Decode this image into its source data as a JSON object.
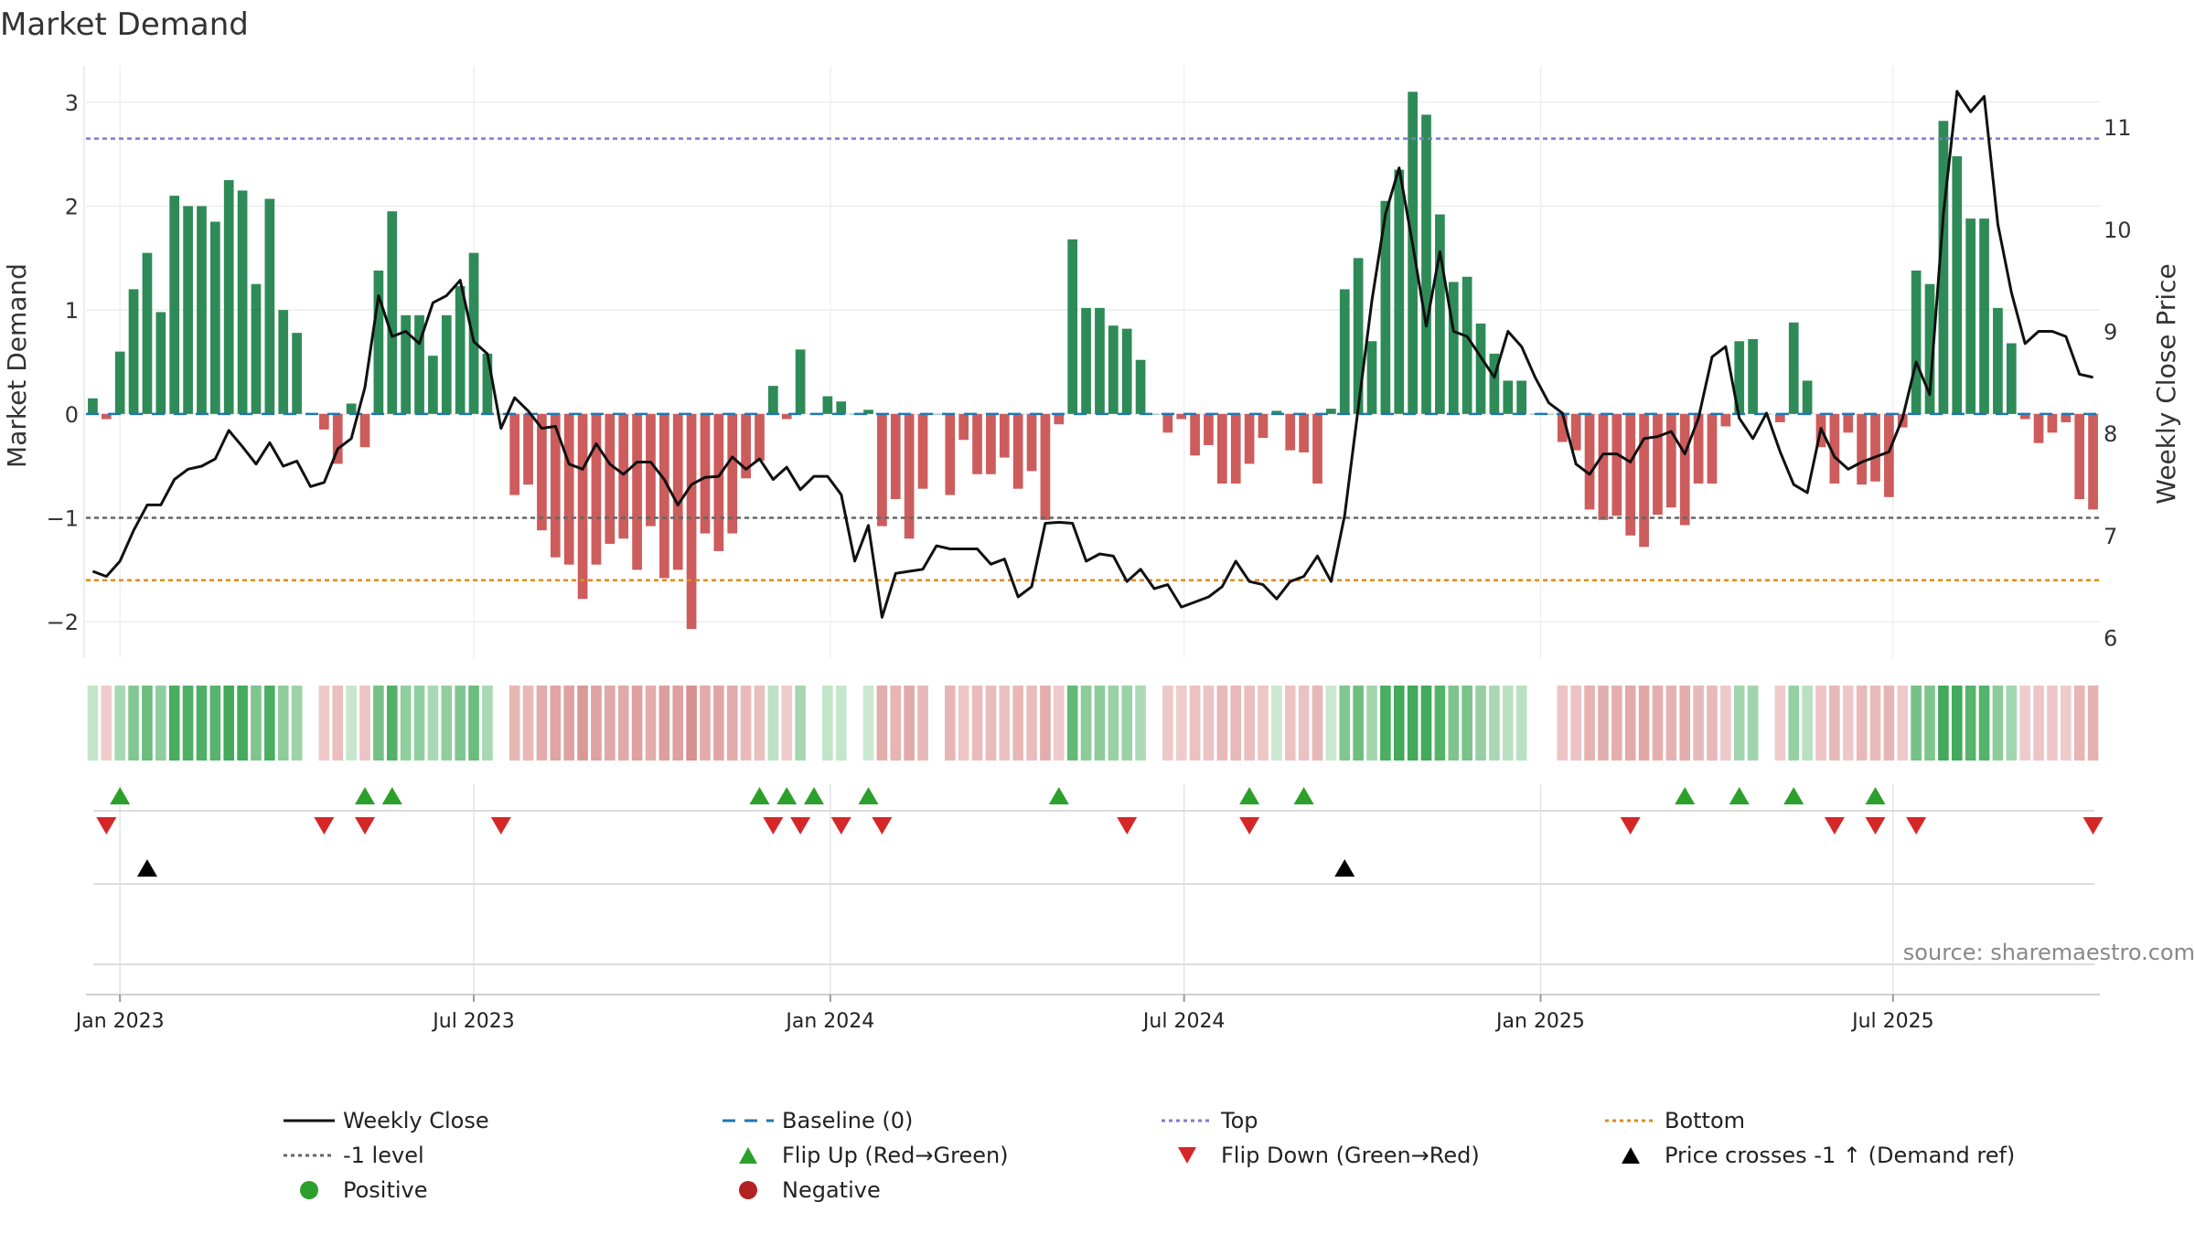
{
  "chart_data": {
    "type": "bar",
    "title": "Market Demand",
    "ylabel": "Market Demand",
    "y2label": "Weekly Close Price",
    "ylim": [
      -2.35,
      3.35
    ],
    "y2lim": [
      5.8,
      11.6
    ],
    "yticks": [
      3,
      2,
      1,
      0,
      -1,
      -2
    ],
    "ytick_labels": [
      "3",
      "2",
      "1",
      "0",
      "−1",
      "−2"
    ],
    "y2ticks": [
      11,
      10,
      9,
      8,
      7,
      6
    ],
    "y2tick_labels": [
      "11",
      "10",
      "9",
      "8",
      "7",
      "6"
    ],
    "xticks": [
      {
        "week": 2,
        "label": "Jan 2023"
      },
      {
        "week": 28,
        "label": "Jul 2023"
      },
      {
        "week": 54.2,
        "label": "Jan 2024"
      },
      {
        "week": 80.2,
        "label": "Jul 2024"
      },
      {
        "week": 106.4,
        "label": "Jan 2025"
      },
      {
        "week": 132.3,
        "label": "Jul 2025"
      }
    ],
    "levels": {
      "baseline": 0,
      "top": 2.65,
      "minus_one": -1,
      "bottom": -1.6
    },
    "demand": [
      0.15,
      -0.05,
      0.6,
      1.2,
      1.55,
      0.98,
      2.1,
      2.0,
      2.0,
      1.85,
      2.25,
      2.15,
      1.25,
      2.07,
      1.0,
      0.78,
      0.0,
      -0.15,
      -0.48,
      0.1,
      -0.32,
      1.38,
      1.95,
      0.95,
      0.95,
      0.56,
      0.95,
      1.23,
      1.55,
      0.58,
      0.0,
      -0.78,
      -0.68,
      -1.12,
      -1.38,
      -1.45,
      -1.78,
      -1.45,
      -1.25,
      -1.2,
      -1.5,
      -1.08,
      -1.58,
      -1.5,
      -2.07,
      -1.15,
      -1.32,
      -1.15,
      -0.62,
      -0.45,
      0.27,
      -0.05,
      0.62,
      0.0,
      0.17,
      0.12,
      0.0,
      0.04,
      -1.08,
      -0.82,
      -1.2,
      -0.72,
      0.0,
      -0.78,
      -0.25,
      -0.58,
      -0.58,
      -0.42,
      -0.72,
      -0.55,
      -1.02,
      -0.1,
      1.68,
      1.02,
      1.02,
      0.85,
      0.82,
      0.52,
      0.0,
      -0.18,
      -0.05,
      -0.4,
      -0.3,
      -0.67,
      -0.67,
      -0.48,
      -0.23,
      0.03,
      -0.35,
      -0.37,
      -0.67,
      0.05,
      1.2,
      1.5,
      0.7,
      2.05,
      2.35,
      3.1,
      2.88,
      1.92,
      1.27,
      1.32,
      0.87,
      0.58,
      0.32,
      0.32,
      0.0,
      0.0,
      -0.27,
      -0.35,
      -0.92,
      -1.02,
      -0.98,
      -1.17,
      -1.28,
      -0.97,
      -0.9,
      -1.07,
      -0.67,
      -0.67,
      -0.12,
      0.7,
      0.72,
      0.0,
      -0.08,
      0.88,
      0.32,
      -0.32,
      -0.67,
      -0.18,
      -0.68,
      -0.65,
      -0.8,
      -0.13,
      1.38,
      1.25,
      2.82,
      2.48,
      1.88,
      1.88,
      1.02,
      0.68,
      -0.05,
      -0.28,
      -0.18,
      -0.08,
      -0.82,
      -0.92
    ],
    "price": [
      6.65,
      6.6,
      6.75,
      7.05,
      7.3,
      7.3,
      7.55,
      7.65,
      7.68,
      7.75,
      8.03,
      7.87,
      7.7,
      7.91,
      7.68,
      7.73,
      7.48,
      7.52,
      7.85,
      7.95,
      8.45,
      9.35,
      8.95,
      9.0,
      8.88,
      9.28,
      9.35,
      9.5,
      8.9,
      8.78,
      8.05,
      8.35,
      8.22,
      8.05,
      8.07,
      7.7,
      7.65,
      7.9,
      7.7,
      7.6,
      7.72,
      7.72,
      7.55,
      7.3,
      7.5,
      7.57,
      7.58,
      7.77,
      7.65,
      7.75,
      7.55,
      7.67,
      7.45,
      7.58,
      7.58,
      7.4,
      6.75,
      7.1,
      6.2,
      6.63,
      6.65,
      6.67,
      6.9,
      6.87,
      6.87,
      6.87,
      6.72,
      6.77,
      6.4,
      6.5,
      7.12,
      7.13,
      7.12,
      6.75,
      6.82,
      6.8,
      6.55,
      6.67,
      6.48,
      6.52,
      6.3,
      6.35,
      6.4,
      6.5,
      6.75,
      6.55,
      6.52,
      6.38,
      6.55,
      6.6,
      6.8,
      6.55,
      7.2,
      8.25,
      9.3,
      10.15,
      10.6,
      9.85,
      9.05,
      9.78,
      9.0,
      8.95,
      8.75,
      8.55,
      9.0,
      8.85,
      8.55,
      8.3,
      8.2,
      7.7,
      7.6,
      7.8,
      7.8,
      7.72,
      7.95,
      7.97,
      8.02,
      7.8,
      8.15,
      8.75,
      8.85,
      8.15,
      7.95,
      8.2,
      7.82,
      7.5,
      7.42,
      8.05,
      7.77,
      7.65,
      7.72,
      7.77,
      7.82,
      8.15,
      8.7,
      8.38,
      10.15,
      11.35,
      11.15,
      11.3,
      10.05,
      9.38,
      8.88,
      9.0,
      9.0,
      8.95,
      8.58,
      8.55
    ],
    "flip_up_weeks": [
      2,
      20,
      22,
      49,
      51,
      53,
      57,
      71,
      85,
      89,
      117,
      121,
      125,
      131
    ],
    "flip_down_weeks": [
      1,
      17,
      20,
      30,
      50,
      52,
      55,
      58,
      76,
      85,
      113,
      128,
      131,
      134,
      147
    ],
    "price_cross_weeks": [
      4,
      92
    ],
    "colors": {
      "positive_bar": "#2e8b57",
      "negative_bar": "#cd5c5c",
      "price_line": "#111111",
      "baseline": "#1f77b4",
      "top": "#7b7bd6",
      "minus_one": "#666666",
      "bottom": "#e08b1e",
      "flip_up": "#2ca02c",
      "flip_down": "#d62728",
      "cross": "#000000",
      "positive_dot": "#2ca02c",
      "negative_dot": "#b22222"
    }
  },
  "source": "source: sharemaestro.com",
  "legend": [
    {
      "label": "Weekly Close",
      "symbol": "line-solid",
      "color": "#111111"
    },
    {
      "label": "Baseline (0)",
      "symbol": "line-dash",
      "color": "#1f77b4"
    },
    {
      "label": "Top",
      "symbol": "line-dot",
      "color": "#7b7bd6"
    },
    {
      "label": "Bottom",
      "symbol": "line-dot",
      "color": "#e08b1e"
    },
    {
      "label": "-1 level",
      "symbol": "line-dot",
      "color": "#666666"
    },
    {
      "label": "Flip Up (Red→Green)",
      "symbol": "triangle-up",
      "color": "#2ca02c"
    },
    {
      "label": "Flip Down (Green→Red)",
      "symbol": "triangle-down",
      "color": "#d62728"
    },
    {
      "label": "Price crosses -1 ↑ (Demand ref)",
      "symbol": "triangle-up",
      "color": "#000000"
    },
    {
      "label": "Positive",
      "symbol": "dot",
      "color": "#2ca02c"
    },
    {
      "label": "Negative",
      "symbol": "dot",
      "color": "#b22222"
    }
  ]
}
